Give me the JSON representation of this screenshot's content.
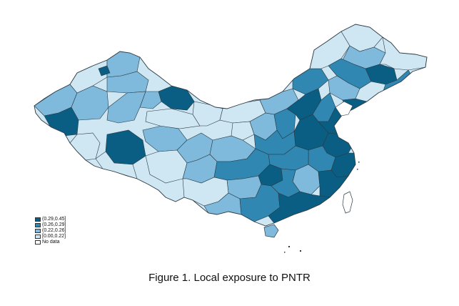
{
  "figure": {
    "caption": "Figure 1. Local exposure to PNTR"
  },
  "legend": {
    "items": [
      {
        "label": "(0.29,0.45]",
        "color": "#0b5e83"
      },
      {
        "label": "(0.26,0.29]",
        "color": "#2f87b2"
      },
      {
        "label": "(0.22,0.26]",
        "color": "#7fb9db"
      },
      {
        "label": "[0.00,0.22]",
        "color": "#cfe6f3"
      },
      {
        "label": "No data",
        "color": "#ffffff"
      }
    ]
  },
  "colors": {
    "outline": "#2a3a44",
    "class_high": "#0b5e83",
    "class_midhigh": "#2f87b2",
    "class_midlow": "#7fb9db",
    "class_low": "#cfe6f3"
  }
}
